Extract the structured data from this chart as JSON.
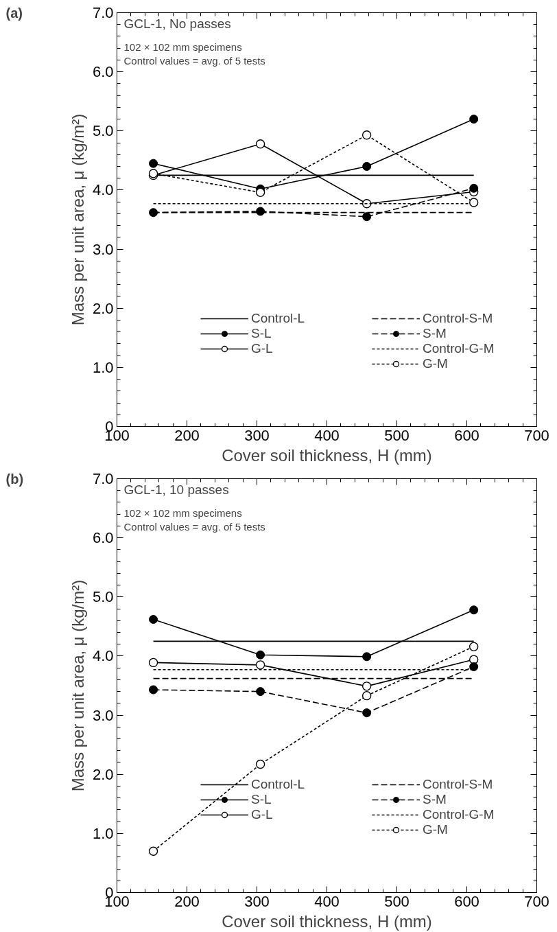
{
  "chart_data": [
    {
      "type": "line",
      "title": "(a)",
      "xlabel": "Cover soil thickness, H (mm)",
      "ylabel": "Mass per unit area, μ (kg/m²)",
      "annotations": [
        "GCL-1, No passes",
        "102 × 102 mm specimens",
        "Control values = avg. of 5 tests"
      ],
      "x": [
        152,
        305,
        457,
        610
      ],
      "xlim": [
        100,
        700
      ],
      "xticks": [
        100,
        200,
        300,
        400,
        500,
        600,
        700
      ],
      "ylim": [
        0,
        7
      ],
      "yticks": [
        0,
        {
          "value": 1,
          "label": "1.0"
        },
        {
          "value": 2,
          "label": "2.0"
        },
        {
          "value": 3,
          "label": "3.0"
        },
        {
          "value": 4,
          "label": "4.0"
        },
        {
          "value": 5,
          "label": "5.0"
        },
        {
          "value": 6,
          "label": "6.0"
        },
        {
          "value": 7,
          "label": "7.0"
        }
      ],
      "grid": false,
      "legend": "bottom",
      "series": [
        {
          "name": "Control-L",
          "color": "#000000",
          "values": [
            4.25,
            4.25,
            4.25,
            4.25
          ],
          "line_style": "solid"
        },
        {
          "name": "S-L",
          "color": "#000000",
          "values": [
            4.45,
            4.02,
            4.4,
            5.2
          ],
          "marker": "circle",
          "line_style": "solid"
        },
        {
          "name": "G-L",
          "color": "#000000",
          "values": [
            4.25,
            4.78,
            3.77,
            3.97
          ],
          "marker": "circle_open",
          "line_style": "solid"
        },
        {
          "name": "Control-S-M",
          "color": "#000000",
          "values": [
            3.62,
            3.62,
            3.62,
            3.62
          ],
          "line_style": "dashed"
        },
        {
          "name": "S-M",
          "color": "#000000",
          "values": [
            3.62,
            3.64,
            3.55,
            4.03
          ],
          "marker": "circle",
          "line_style": "dashed"
        },
        {
          "name": "Control-G-M",
          "color": "#000000",
          "values": [
            3.77,
            3.77,
            3.77,
            3.77
          ],
          "line_style": "dotted"
        },
        {
          "name": "G-M",
          "color": "#000000",
          "values": [
            4.28,
            3.96,
            4.93,
            3.79
          ],
          "marker": "circle_open",
          "line_style": "dotted"
        }
      ]
    },
    {
      "type": "line",
      "title": "(b)",
      "xlabel": "Cover soil thickness, H (mm)",
      "ylabel": "Mass per unit area, μ (kg/m²)",
      "annotations": [
        "GCL-1, 10 passes",
        "102 × 102 mm specimens",
        "Control values = avg. of 5 tests"
      ],
      "x": [
        152,
        305,
        457,
        610
      ],
      "xlim": [
        100,
        700
      ],
      "xticks": [
        100,
        200,
        300,
        400,
        500,
        600,
        700
      ],
      "ylim": [
        0,
        7
      ],
      "yticks": [
        0,
        {
          "value": 1,
          "label": "1.0"
        },
        {
          "value": 2,
          "label": "2.0"
        },
        {
          "value": 3,
          "label": "3.0"
        },
        {
          "value": 4,
          "label": "4.0"
        },
        {
          "value": 5,
          "label": "5.0"
        },
        {
          "value": 6,
          "label": "6.0"
        },
        {
          "value": 7,
          "label": "7.0"
        }
      ],
      "grid": false,
      "legend": "bottom",
      "series": [
        {
          "name": "Control-L",
          "color": "#000000",
          "values": [
            4.25,
            4.25,
            4.25,
            4.25
          ],
          "line_style": "solid"
        },
        {
          "name": "S-L",
          "color": "#000000",
          "values": [
            4.62,
            4.02,
            3.99,
            4.78
          ],
          "marker": "circle",
          "line_style": "solid"
        },
        {
          "name": "G-L",
          "color": "#000000",
          "values": [
            3.89,
            3.85,
            3.49,
            3.94
          ],
          "marker": "circle_open",
          "line_style": "solid"
        },
        {
          "name": "Control-S-M",
          "color": "#000000",
          "values": [
            3.62,
            3.62,
            3.62,
            3.62
          ],
          "line_style": "dashed"
        },
        {
          "name": "S-M",
          "color": "#000000",
          "values": [
            3.43,
            3.4,
            3.04,
            3.82
          ],
          "marker": "circle",
          "line_style": "dashed"
        },
        {
          "name": "Control-G-M",
          "color": "#000000",
          "values": [
            3.77,
            3.77,
            3.77,
            3.77
          ],
          "line_style": "dotted"
        },
        {
          "name": "G-M",
          "color": "#000000",
          "values": [
            0.7,
            2.17,
            3.33,
            4.16
          ],
          "marker": "circle_open",
          "line_style": "dotted"
        }
      ]
    }
  ]
}
